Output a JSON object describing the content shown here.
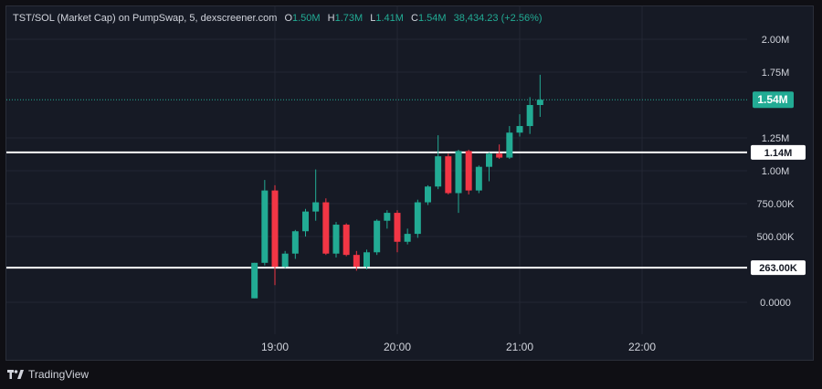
{
  "legend": {
    "symbol": "TST/SOL (Market Cap) on PumpSwap, 5, dexscreener.com",
    "o_label": "O",
    "o_value": "1.50M",
    "h_label": "H",
    "h_value": "1.73M",
    "l_label": "L",
    "l_value": "1.41M",
    "c_label": "C",
    "c_value": "1.54M",
    "change": "38,434.23 (+2.56%)"
  },
  "footer": {
    "brand": "TradingView"
  },
  "colors": {
    "up": "#22ab94",
    "down": "#f23645",
    "background": "#161a25",
    "grid": "#232733",
    "text": "#d1d4dc",
    "hline": "#ffffff"
  },
  "chart_data": {
    "type": "candlestick",
    "y_ticks": [
      {
        "label": "2.00M",
        "value": 2000000
      },
      {
        "label": "1.75M",
        "value": 1750000
      },
      {
        "label": "1.25M",
        "value": 1250000
      },
      {
        "label": "1.00M",
        "value": 1000000
      },
      {
        "label": "750.00K",
        "value": 750000
      },
      {
        "label": "500.00K",
        "value": 500000
      },
      {
        "label": "0.0000",
        "value": 0
      }
    ],
    "x_ticks": [
      "19:00",
      "20:00",
      "21:00",
      "22:00"
    ],
    "current_price_label": "1.54M",
    "current_price": 1540000,
    "horizontal_lines": [
      {
        "label": "1.14M",
        "value": 1140000
      },
      {
        "label": "263.00K",
        "value": 263000
      }
    ],
    "candles": [
      {
        "time": "18:50",
        "o": 30000,
        "h": 300000,
        "l": 30000,
        "c": 300000
      },
      {
        "time": "18:55",
        "o": 300000,
        "h": 930000,
        "l": 280000,
        "c": 850000
      },
      {
        "time": "19:00",
        "o": 850000,
        "h": 890000,
        "l": 130000,
        "c": 270000
      },
      {
        "time": "19:05",
        "o": 270000,
        "h": 390000,
        "l": 260000,
        "c": 370000
      },
      {
        "time": "19:10",
        "o": 370000,
        "h": 550000,
        "l": 330000,
        "c": 540000
      },
      {
        "time": "19:15",
        "o": 540000,
        "h": 710000,
        "l": 500000,
        "c": 690000
      },
      {
        "time": "19:20",
        "o": 690000,
        "h": 1010000,
        "l": 620000,
        "c": 760000
      },
      {
        "time": "19:25",
        "o": 760000,
        "h": 790000,
        "l": 360000,
        "c": 370000
      },
      {
        "time": "19:30",
        "o": 370000,
        "h": 610000,
        "l": 340000,
        "c": 590000
      },
      {
        "time": "19:35",
        "o": 590000,
        "h": 600000,
        "l": 350000,
        "c": 360000
      },
      {
        "time": "19:40",
        "o": 360000,
        "h": 390000,
        "l": 240000,
        "c": 270000
      },
      {
        "time": "19:45",
        "o": 270000,
        "h": 400000,
        "l": 250000,
        "c": 380000
      },
      {
        "time": "19:50",
        "o": 380000,
        "h": 630000,
        "l": 360000,
        "c": 620000
      },
      {
        "time": "19:55",
        "o": 620000,
        "h": 700000,
        "l": 560000,
        "c": 680000
      },
      {
        "time": "20:00",
        "o": 680000,
        "h": 700000,
        "l": 380000,
        "c": 460000
      },
      {
        "time": "20:05",
        "o": 460000,
        "h": 560000,
        "l": 440000,
        "c": 520000
      },
      {
        "time": "20:10",
        "o": 520000,
        "h": 780000,
        "l": 490000,
        "c": 760000
      },
      {
        "time": "20:15",
        "o": 760000,
        "h": 890000,
        "l": 740000,
        "c": 880000
      },
      {
        "time": "20:20",
        "o": 880000,
        "h": 1270000,
        "l": 860000,
        "c": 1110000
      },
      {
        "time": "20:25",
        "o": 1110000,
        "h": 1130000,
        "l": 820000,
        "c": 830000
      },
      {
        "time": "20:30",
        "o": 830000,
        "h": 1160000,
        "l": 680000,
        "c": 1150000
      },
      {
        "time": "20:35",
        "o": 1150000,
        "h": 1160000,
        "l": 820000,
        "c": 850000
      },
      {
        "time": "20:40",
        "o": 850000,
        "h": 1040000,
        "l": 830000,
        "c": 1030000
      },
      {
        "time": "20:45",
        "o": 1030000,
        "h": 1140000,
        "l": 920000,
        "c": 1130000
      },
      {
        "time": "20:50",
        "o": 1130000,
        "h": 1200000,
        "l": 1090000,
        "c": 1100000
      },
      {
        "time": "20:55",
        "o": 1100000,
        "h": 1340000,
        "l": 1090000,
        "c": 1290000
      },
      {
        "time": "21:00",
        "o": 1290000,
        "h": 1430000,
        "l": 1260000,
        "c": 1340000
      },
      {
        "time": "21:05",
        "o": 1340000,
        "h": 1560000,
        "l": 1280000,
        "c": 1500000
      },
      {
        "time": "21:10",
        "o": 1500000,
        "h": 1730000,
        "l": 1410000,
        "c": 1540000
      }
    ]
  }
}
